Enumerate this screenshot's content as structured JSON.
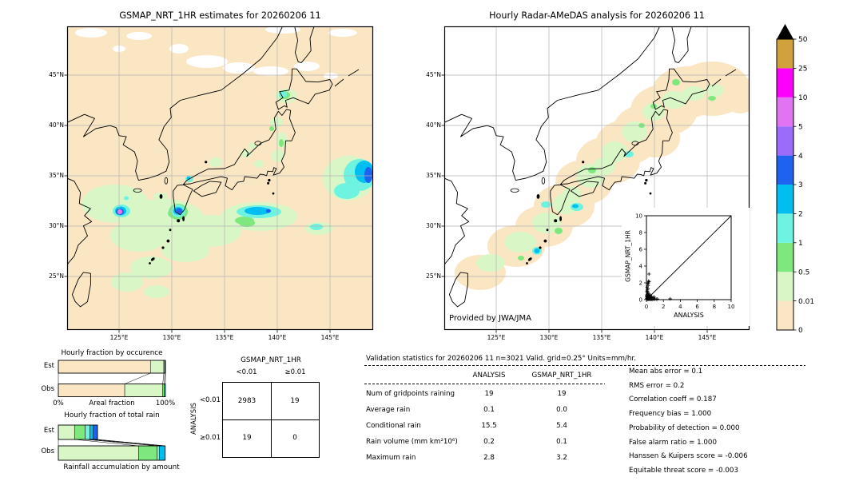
{
  "ticks": {
    "lat": [
      "45°N",
      "40°N",
      "35°N",
      "30°N",
      "25°N"
    ],
    "lon": [
      "125°E",
      "130°E",
      "135°E",
      "140°E",
      "145°E"
    ]
  },
  "colorbar": {
    "units": "mm/hr",
    "levels": [
      "0",
      "0.01",
      "0.5",
      "1",
      "2",
      "3",
      "4",
      "5",
      "10",
      "25",
      "50"
    ],
    "colors": [
      "#fae6c3",
      "#d9f6c6",
      "#7ee87e",
      "#6ef3e0",
      "#00bef0",
      "#1f62f0",
      "#9b6bf9",
      "#e273f2",
      "#fb00fb",
      "#d0a13c"
    ],
    "over_color": "#000000"
  },
  "chart_data": [
    {
      "id": "gsmap_map",
      "type": "heatmap",
      "title": "GSMAP_NRT_1HR estimates for 20260206 11",
      "x_ticks": [
        "125°E",
        "130°E",
        "135°E",
        "140°E",
        "145°E"
      ],
      "y_ticks": [
        "45°N",
        "40°N",
        "35°N",
        "30°N",
        "25°N"
      ],
      "legend_levels": [
        0,
        0.01,
        0.5,
        1,
        2,
        3,
        4,
        5,
        10,
        25,
        50
      ],
      "units": "mm/hr"
    },
    {
      "id": "radar_map",
      "type": "heatmap",
      "title": "Hourly Radar-AMeDAS analysis for 20260206 11",
      "credit": "Provided by JWA/JMA",
      "x_ticks": [
        "125°E",
        "130°E",
        "135°E",
        "140°E",
        "145°E"
      ],
      "y_ticks": [
        "45°N",
        "40°N",
        "35°N",
        "30°N",
        "25°N"
      ],
      "legend_levels": [
        0,
        0.01,
        0.5,
        1,
        2,
        3,
        4,
        5,
        10,
        25,
        50
      ],
      "units": "mm/hr"
    },
    {
      "id": "occurrence",
      "type": "bar",
      "orientation": "horizontal",
      "title": "Hourly fraction by occurence",
      "categories": [
        "Est",
        "Obs"
      ],
      "xlabel": "Areal fraction",
      "xlim": [
        "0%",
        "100%"
      ],
      "series": [
        {
          "name": "0-0.01",
          "color": "#fae6c3",
          "values": [
            86.0,
            62.0
          ]
        },
        {
          "name": "0.01-0.5",
          "color": "#d9f6c6",
          "values": [
            12.5,
            35.5
          ]
        },
        {
          "name": "0.5-1",
          "color": "#7ee87e",
          "values": [
            1.0,
            1.5
          ]
        },
        {
          "name": "1-2",
          "color": "#6ef3e0",
          "values": [
            0.5,
            1.0
          ]
        }
      ]
    },
    {
      "id": "totalrain",
      "type": "bar",
      "orientation": "horizontal",
      "title": "Hourly fraction of total rain",
      "caption": "Rainfall accumulation by amount",
      "categories": [
        "Est",
        "Obs"
      ],
      "series": [
        {
          "name": "0.01-0.5",
          "color": "#d9f6c6",
          "values": [
            15.1,
            74.9
          ]
        },
        {
          "name": "0.5-1",
          "color": "#7ee87e",
          "values": [
            10.0,
            17.4
          ]
        },
        {
          "name": "1-2",
          "color": "#6ef3e0",
          "values": [
            4.5,
            2.0
          ]
        },
        {
          "name": "2-3",
          "color": "#00bef0",
          "values": [
            3.0,
            5.5
          ]
        },
        {
          "name": "3-4",
          "color": "#1f62f0",
          "values": [
            4.0,
            0.0
          ]
        }
      ]
    },
    {
      "id": "scatter_inset",
      "type": "scatter",
      "xlabel": "ANALYSIS",
      "ylabel": "GSMAP_NRT_1HR",
      "xlim": [
        0,
        10
      ],
      "ylim": [
        0,
        10
      ],
      "ticks": [
        0,
        2,
        4,
        6,
        8,
        10
      ],
      "diagonal": true,
      "points": [
        [
          0.05,
          0.05
        ],
        [
          0.1,
          0.1
        ],
        [
          0.15,
          0.05
        ],
        [
          0.05,
          0.15
        ],
        [
          0.2,
          0.05
        ],
        [
          0.1,
          0.2
        ],
        [
          0.25,
          0.1
        ],
        [
          0.05,
          0.3
        ],
        [
          0.15,
          0.25
        ],
        [
          0.3,
          0.05
        ],
        [
          0.2,
          0.2
        ],
        [
          0.1,
          0.35
        ],
        [
          0.35,
          0.15
        ],
        [
          0.05,
          0.45
        ],
        [
          0.25,
          0.3
        ],
        [
          0.4,
          0.05
        ],
        [
          0.15,
          0.4
        ],
        [
          0.3,
          0.25
        ],
        [
          0.45,
          0.1
        ],
        [
          0.05,
          0.55
        ],
        [
          0.2,
          0.45
        ],
        [
          0.5,
          0.05
        ],
        [
          0.35,
          0.3
        ],
        [
          0.1,
          0.6
        ],
        [
          0.55,
          0.15
        ],
        [
          0.25,
          0.5
        ],
        [
          0.6,
          0.05
        ],
        [
          0.4,
          0.4
        ],
        [
          0.15,
          0.7
        ],
        [
          0.65,
          0.1
        ],
        [
          0.3,
          0.6
        ],
        [
          0.7,
          0.05
        ],
        [
          0.5,
          0.3
        ],
        [
          0.2,
          0.8
        ],
        [
          0.8,
          0.1
        ],
        [
          0.45,
          0.55
        ],
        [
          0.9,
          0.05
        ],
        [
          0.6,
          0.35
        ],
        [
          1.0,
          0.1
        ],
        [
          1.15,
          0.05
        ],
        [
          0.75,
          0.25
        ],
        [
          1.3,
          0.08
        ],
        [
          0.9,
          0.3
        ],
        [
          0.05,
          0.95
        ],
        [
          0.12,
          1.0
        ],
        [
          0.1,
          1.15
        ],
        [
          0.18,
          1.3
        ],
        [
          0.08,
          1.5
        ],
        [
          0.2,
          1.7
        ],
        [
          0.15,
          1.9
        ],
        [
          0.22,
          2.0
        ],
        [
          0.3,
          2.15
        ],
        [
          0.25,
          2.2
        ],
        [
          0.3,
          3.05
        ],
        [
          2.8,
          0.1
        ]
      ]
    },
    {
      "id": "contingency",
      "type": "table",
      "title": "GSMAP_NRT_1HR",
      "row_axis": "ANALYSIS",
      "col_headers": [
        "<0.01",
        "≥0.01"
      ],
      "row_headers": [
        "<0.01",
        "≥0.01"
      ],
      "values": [
        [
          2983,
          19
        ],
        [
          19,
          0
        ]
      ]
    },
    {
      "id": "validation",
      "type": "table",
      "title": "Validation statistics for 20260206 11  n=3021 Valid. grid=0.25° Units=mm/hr.",
      "col_headers": [
        "ANALYSIS",
        "GSMAP_NRT_1HR"
      ],
      "rows": [
        [
          "Num of gridpoints raining",
          "19",
          "19"
        ],
        [
          "Average rain",
          "0.1",
          "0.0"
        ],
        [
          "Conditional rain",
          "15.5",
          "5.4"
        ],
        [
          "Rain volume (mm km²10⁶)",
          "0.2",
          "0.1"
        ],
        [
          "Maximum rain",
          "2.8",
          "3.2"
        ]
      ],
      "metrics": [
        "Mean abs error =    0.1",
        "RMS error =    0.2",
        "Correlation coeff =  0.187",
        "Frequency bias =  1.000",
        "Probability of detection =  0.000",
        "False alarm ratio =  1.000",
        "Hanssen & Kuipers score = -0.006",
        "Equitable threat score = -0.003"
      ]
    }
  ]
}
